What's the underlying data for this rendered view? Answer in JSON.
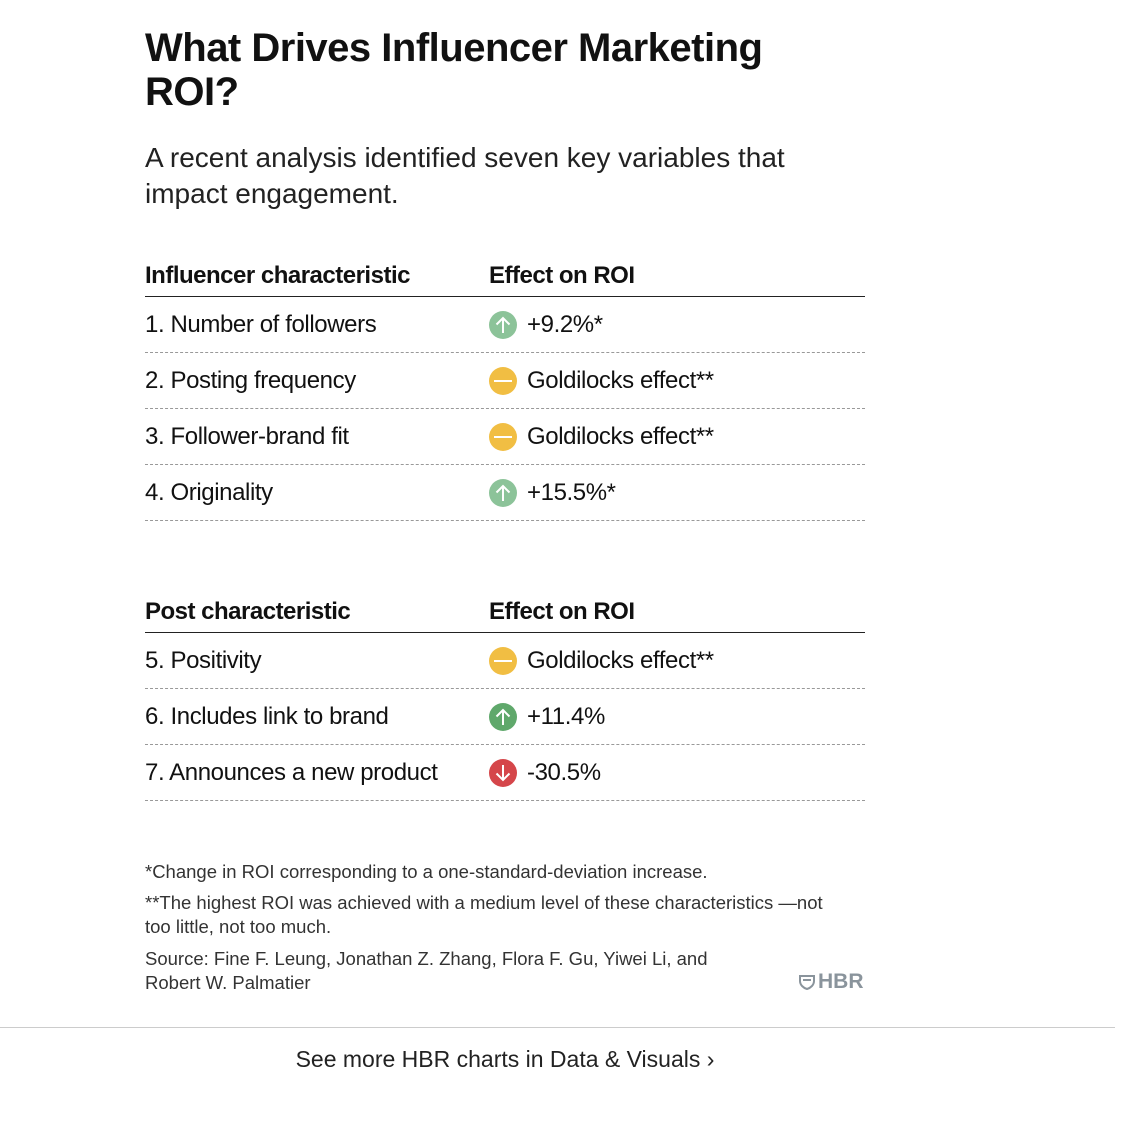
{
  "title": "What Drives Influencer Marketing ROI?",
  "subtitle": "A recent analysis identified seven key variables that impact engagement.",
  "colors": {
    "up_light": "#8cc399",
    "up": "#5fa86b",
    "neutral": "#f1be43",
    "down": "#d5464a"
  },
  "tables": [
    {
      "header": [
        "Influencer characteristic",
        "Effect on ROI"
      ],
      "rows": [
        {
          "label": "1. Number of followers",
          "effect": "+9.2%*",
          "icon": "arrow-up-icon",
          "color": "#8cc399"
        },
        {
          "label": "2. Posting frequency",
          "effect": "Goldilocks effect**",
          "icon": "minus-icon",
          "color": "#f1be43"
        },
        {
          "label": "3. Follower-brand fit",
          "effect": "Goldilocks effect**",
          "icon": "minus-icon",
          "color": "#f1be43"
        },
        {
          "label": "4. Originality",
          "effect": "+15.5%*",
          "icon": "arrow-up-icon",
          "color": "#8cc399"
        }
      ]
    },
    {
      "header": [
        "Post characteristic",
        "Effect on ROI"
      ],
      "rows": [
        {
          "label": "5. Positivity",
          "effect": "Goldilocks effect**",
          "icon": "minus-icon",
          "color": "#f1be43"
        },
        {
          "label": "6. Includes link to brand",
          "effect": "+11.4%",
          "icon": "arrow-up-icon",
          "color": "#5fa86b"
        },
        {
          "label": "7. Announces a new product",
          "effect": "-30.5%",
          "icon": "arrow-down-icon",
          "color": "#d5464a"
        }
      ]
    }
  ],
  "notes": {
    "n1": "*Change in ROI corresponding to a one-standard-deviation increase.",
    "n2": "**The highest ROI was achieved with a medium level of these characteristics —not too little, not too much.",
    "source": "Source: Fine F. Leung, Jonathan Z. Zhang, Flora F. Gu, Yiwei Li, and Robert W. Palmatier"
  },
  "logo": "HBR",
  "more_link": "See more HBR charts in Data & Visuals"
}
